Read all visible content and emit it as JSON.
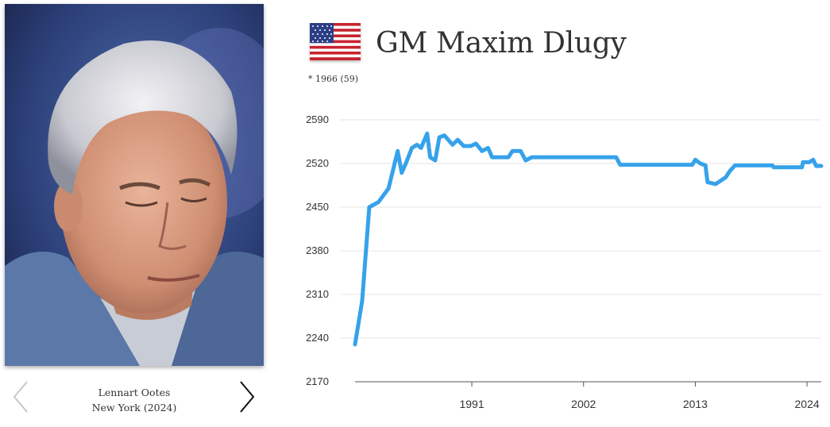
{
  "player": {
    "name": "GM Maxim Dlugy",
    "birth_prefix": "*",
    "birth_info": "1966 (59)",
    "flag_icon": "us-flag-icon"
  },
  "photo": {
    "credit": "Lennart Ootes",
    "location": "New York (2024)"
  },
  "colors": {
    "line": "#36a2eb",
    "grid": "#e6e6e6",
    "axis": "#555555",
    "text": "#333333"
  },
  "chart_data": {
    "type": "line",
    "title": "",
    "xlabel": "",
    "ylabel": "",
    "xlim": [
      1979.5,
      2025.4
    ],
    "ylim": [
      2170,
      2590
    ],
    "yticks": [
      2170,
      2240,
      2310,
      2380,
      2450,
      2520,
      2590
    ],
    "xticks": [
      1991,
      2002,
      2013,
      2024
    ],
    "grid": "horizontal",
    "legend": "none",
    "series": [
      {
        "points": [
          [
            1979.5,
            2230
          ],
          [
            1980.2,
            2300
          ],
          [
            1980.9,
            2450
          ],
          [
            1981.8,
            2458
          ],
          [
            1982.8,
            2480
          ],
          [
            1983.7,
            2540
          ],
          [
            1984.1,
            2505
          ],
          [
            1984.5,
            2520
          ],
          [
            1985.1,
            2545
          ],
          [
            1985.6,
            2550
          ],
          [
            1986.0,
            2545
          ],
          [
            1986.6,
            2568
          ],
          [
            1986.9,
            2530
          ],
          [
            1987.4,
            2525
          ],
          [
            1987.8,
            2562
          ],
          [
            1988.3,
            2565
          ],
          [
            1989.1,
            2550
          ],
          [
            1989.6,
            2558
          ],
          [
            1990.2,
            2548
          ],
          [
            1990.9,
            2548
          ],
          [
            1991.4,
            2552
          ],
          [
            1992.0,
            2540
          ],
          [
            1992.6,
            2545
          ],
          [
            1993.0,
            2530
          ],
          [
            1993.8,
            2530
          ],
          [
            1994.6,
            2530
          ],
          [
            1995.0,
            2540
          ],
          [
            1995.8,
            2540
          ],
          [
            1996.3,
            2525
          ],
          [
            1996.9,
            2530
          ],
          [
            1997.8,
            2530
          ],
          [
            1999.0,
            2530
          ],
          [
            2000.0,
            2530
          ],
          [
            2001.0,
            2530
          ],
          [
            2002.0,
            2530
          ],
          [
            2003.0,
            2530
          ],
          [
            2004.0,
            2530
          ],
          [
            2005.2,
            2530
          ],
          [
            2005.6,
            2518
          ],
          [
            2007.0,
            2518
          ],
          [
            2009.0,
            2518
          ],
          [
            2011.0,
            2518
          ],
          [
            2012.7,
            2518
          ],
          [
            2013.0,
            2526
          ],
          [
            2013.5,
            2520
          ],
          [
            2014.0,
            2517
          ],
          [
            2014.2,
            2490
          ],
          [
            2015.0,
            2487
          ],
          [
            2016.0,
            2498
          ],
          [
            2016.4,
            2508
          ],
          [
            2016.9,
            2517
          ],
          [
            2018.0,
            2517
          ],
          [
            2019.0,
            2517
          ],
          [
            2020.0,
            2517
          ],
          [
            2020.6,
            2517
          ],
          [
            2020.7,
            2514
          ],
          [
            2021.5,
            2514
          ],
          [
            2023.0,
            2514
          ],
          [
            2023.5,
            2514
          ],
          [
            2023.6,
            2522
          ],
          [
            2024.2,
            2522
          ],
          [
            2024.6,
            2526
          ],
          [
            2024.9,
            2516
          ],
          [
            2025.4,
            2516
          ]
        ]
      }
    ]
  }
}
